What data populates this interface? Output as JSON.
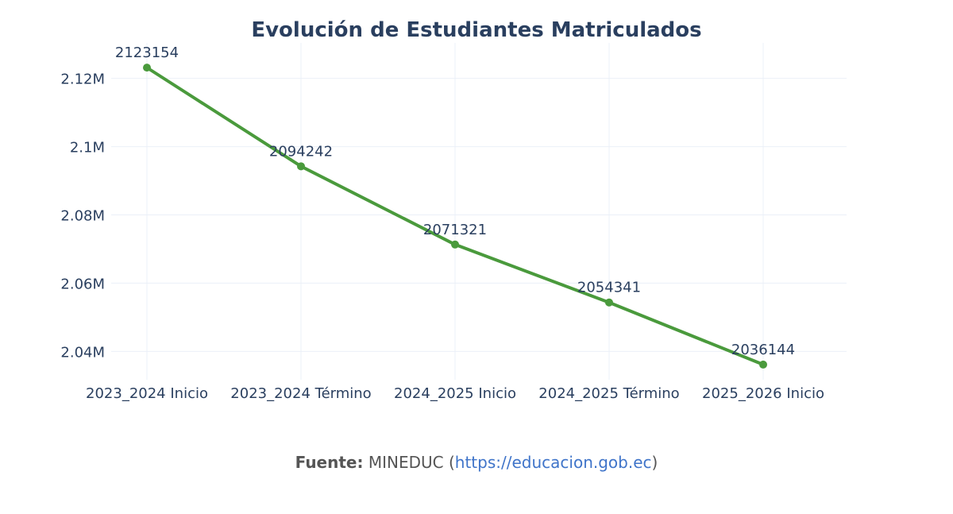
{
  "chart_data": {
    "type": "line",
    "title": "Evolución de Estudiantes Matriculados",
    "xlabel": "",
    "ylabel": "",
    "categories": [
      "2023_2024 Inicio",
      "2023_2024 Término",
      "2024_2025 Inicio",
      "2024_2025 Término",
      "2025_2026 Inicio"
    ],
    "series": [
      {
        "values": [
          2123154,
          2094242,
          2071321,
          2054341,
          2036144
        ],
        "color": "#4a9a3c"
      }
    ],
    "data_labels": [
      "2123154",
      "2094242",
      "2071321",
      "2054341",
      "2036144"
    ],
    "ylim": [
      2031700,
      2130400
    ],
    "yticks": [
      2040000,
      2060000,
      2080000,
      2100000,
      2120000
    ],
    "ytick_labels": [
      "2.04M",
      "2.06M",
      "2.08M",
      "2.1M",
      "2.12M"
    ],
    "grid": true,
    "legend": "none",
    "colors": {
      "grid": "#ebf0f8",
      "text": "#2a3f5f",
      "line": "#4a9a3c"
    }
  },
  "source": {
    "label": "Fuente:",
    "name": "MINEDUC (",
    "url": "https://educacion.gob.ec",
    "close": ")"
  }
}
